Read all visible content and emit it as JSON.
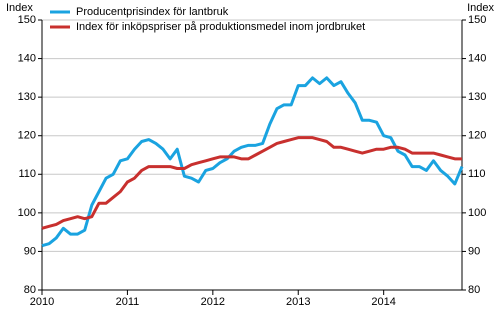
{
  "chart_data": {
    "type": "line",
    "y_label": "Index",
    "y2_label": "Index",
    "x": [
      2010,
      2010.083,
      2010.167,
      2010.25,
      2010.333,
      2010.417,
      2010.5,
      2010.583,
      2010.667,
      2010.75,
      2010.833,
      2010.917,
      2011,
      2011.083,
      2011.167,
      2011.25,
      2011.333,
      2011.417,
      2011.5,
      2011.583,
      2011.667,
      2011.75,
      2011.833,
      2011.917,
      2012,
      2012.083,
      2012.167,
      2012.25,
      2012.333,
      2012.417,
      2012.5,
      2012.583,
      2012.667,
      2012.75,
      2012.833,
      2012.917,
      2013,
      2013.083,
      2013.167,
      2013.25,
      2013.333,
      2013.417,
      2013.5,
      2013.583,
      2013.667,
      2013.75,
      2013.833,
      2013.917,
      2014,
      2014.083,
      2014.167,
      2014.25,
      2014.333,
      2014.417,
      2014.5,
      2014.583,
      2014.667,
      2014.75,
      2014.833,
      2014.917
    ],
    "series": [
      {
        "name": "Producentprisindex för lantbruk",
        "color": "#1aa3e0",
        "values": [
          91.5,
          92,
          93.5,
          96,
          94.5,
          94.5,
          95.5,
          102,
          105.5,
          109,
          110,
          113.5,
          114,
          116.5,
          118.5,
          119,
          118,
          116.5,
          114,
          116.5,
          109.5,
          109,
          108,
          111,
          111.5,
          113,
          114,
          116,
          117,
          117.5,
          117.5,
          118,
          123,
          127,
          128,
          128,
          133,
          133,
          135,
          133.5,
          135,
          133,
          134,
          131,
          128.5,
          124,
          124,
          123.5,
          120,
          119.5,
          116,
          115,
          112,
          112,
          111,
          113.5,
          111,
          109.5,
          107.5,
          112
        ]
      },
      {
        "name": "Index för inköpspriser på produktionsmedel inom jordbruket",
        "color": "#c8302e",
        "values": [
          96,
          96.5,
          97,
          98,
          98.5,
          99,
          98.5,
          99,
          102.5,
          102.5,
          104,
          105.5,
          108,
          109,
          111,
          112,
          112,
          112,
          112,
          111.5,
          111.5,
          112.5,
          113,
          113.5,
          114,
          114.5,
          114.5,
          114.5,
          114,
          114,
          115,
          116,
          117,
          118,
          118.5,
          119,
          119.5,
          119.5,
          119.5,
          119,
          118.5,
          117,
          117,
          116.5,
          116,
          115.5,
          116,
          116.5,
          116.5,
          117,
          117,
          116.5,
          115.5,
          115.5,
          115.5,
          115.5,
          115,
          114.5,
          114,
          114
        ]
      }
    ],
    "xlim": [
      2010,
      2014.917
    ],
    "xticks": [
      2010,
      2011,
      2012,
      2013,
      2014
    ],
    "ylim": [
      80,
      150
    ],
    "yticks": [
      80,
      90,
      100,
      110,
      120,
      130,
      140,
      150
    ],
    "y2lim": [
      80,
      150
    ],
    "y2ticks": [
      80,
      90,
      100,
      110,
      120,
      130,
      140,
      150
    ],
    "grid": true,
    "legend": "upper left"
  }
}
